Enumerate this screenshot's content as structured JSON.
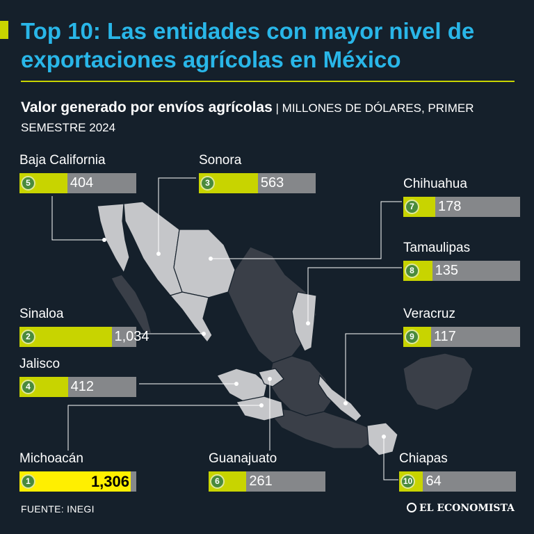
{
  "header": {
    "title": "Top 10: Las entidades con mayor nivel de exportaciones agrícolas en México",
    "subtitle_bold": "Valor generado por envíos agrícolas",
    "subtitle_separator": " | ",
    "subtitle_units": "MILLONES DE DÓLARES, PRIMER SEMESTRE 2024"
  },
  "chart_data": {
    "type": "bar",
    "title": "Top 10: Las entidades con mayor nivel de exportaciones agrícolas en México",
    "subtitle": "Valor generado por envíos agrícolas | MILLONES DE DÓLARES, PRIMER SEMESTRE 2024",
    "unit": "millones de dólares",
    "ylim": [
      0,
      1306
    ],
    "entries": [
      {
        "rank": "1",
        "state": "Michoacán",
        "value": 1306,
        "label": "1,306"
      },
      {
        "rank": "2",
        "state": "Sinaloa",
        "value": 1034,
        "label": "1,034"
      },
      {
        "rank": "3",
        "state": "Sonora",
        "value": 563,
        "label": "563"
      },
      {
        "rank": "4",
        "state": "Jalisco",
        "value": 412,
        "label": "412"
      },
      {
        "rank": "5",
        "state": "Baja California",
        "value": 404,
        "label": "404"
      },
      {
        "rank": "6",
        "state": "Guanajuato",
        "value": 261,
        "label": "261"
      },
      {
        "rank": "7",
        "state": "Chihuahua",
        "value": 178,
        "label": "178"
      },
      {
        "rank": "8",
        "state": "Tamaulipas",
        "value": 135,
        "label": "135"
      },
      {
        "rank": "9",
        "state": "Veracruz",
        "value": 117,
        "label": "117"
      },
      {
        "rank": "10",
        "state": "Chiapas",
        "value": 64,
        "label": "64"
      }
    ]
  },
  "colors": {
    "background": "#15202b",
    "title": "#29b6e8",
    "accent": "#c8d400",
    "highlight": "#ffef00",
    "bar_track": "#85878a",
    "badge": "#4a8a3c",
    "map_light": "#c5c6c9",
    "map_dark": "#3a3f48"
  },
  "footer": {
    "source": "FUENTE: INEGI",
    "brand": "EL ECONOMISTA"
  }
}
